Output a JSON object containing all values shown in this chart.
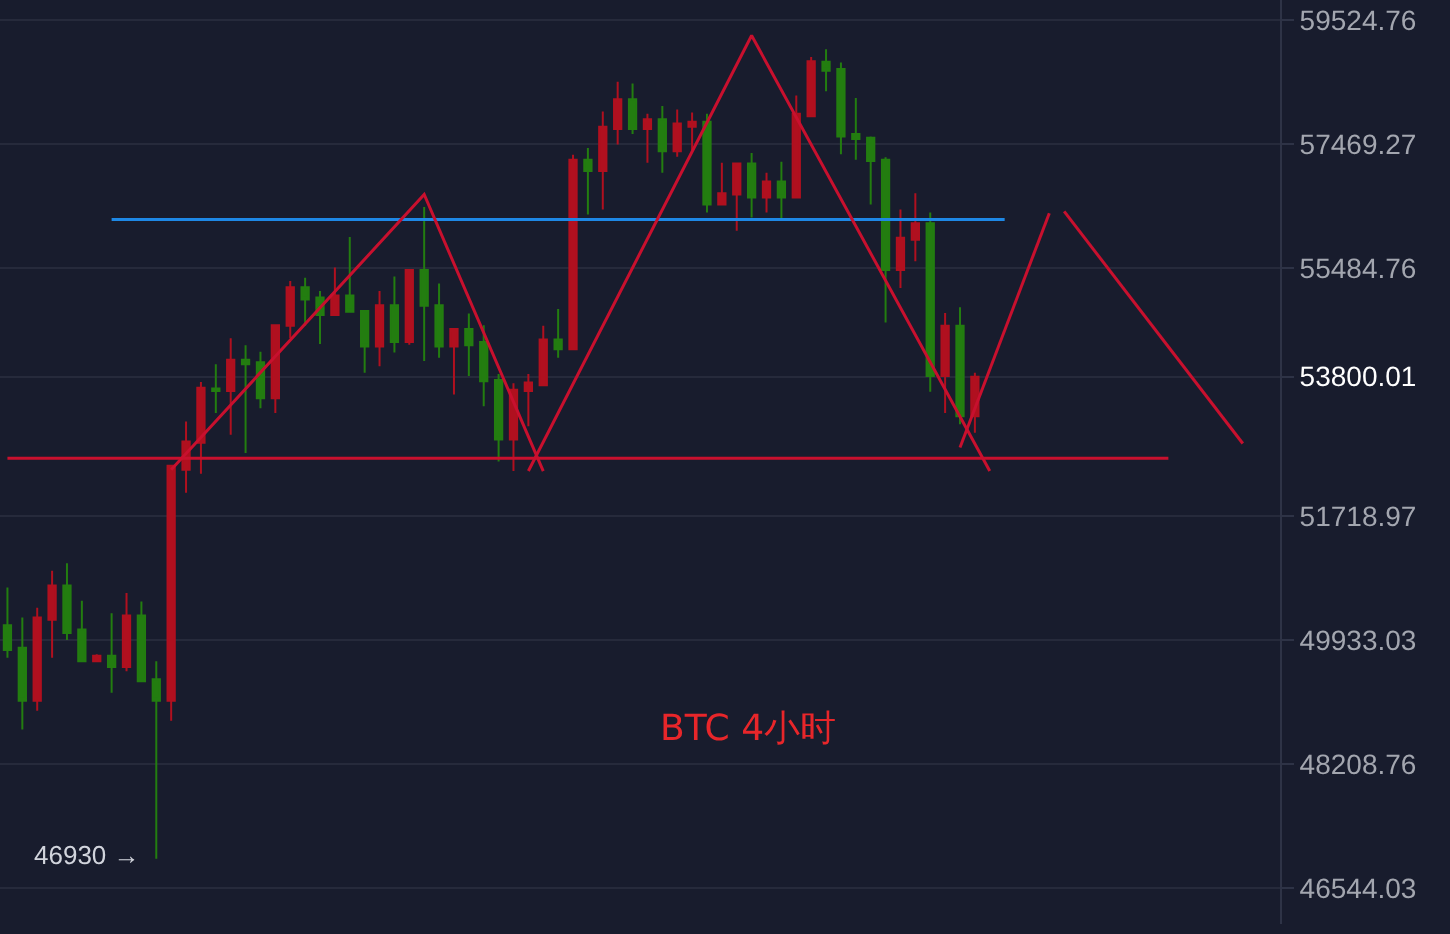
{
  "chart_data": {
    "type": "candlestick",
    "annotations": [
      "BTC 4小时",
      "46930 →"
    ],
    "categories": [
      null,
      null,
      null,
      null,
      null,
      null,
      null,
      null,
      null,
      null,
      null,
      null,
      null,
      null,
      null,
      null,
      null,
      null,
      null,
      null,
      null,
      null,
      null,
      null,
      null,
      null,
      null,
      null,
      null,
      null,
      null,
      null,
      null,
      null,
      null,
      null,
      null,
      null,
      null,
      null,
      null,
      null,
      null,
      null,
      null,
      null,
      null,
      null,
      null,
      null,
      null,
      null,
      null,
      null,
      null,
      null,
      null,
      null,
      null,
      null,
      null,
      null,
      null,
      null,
      null,
      null,
      null,
      null,
      null,
      null,
      null,
      null,
      null,
      null,
      null,
      null,
      null,
      null,
      null,
      null,
      null,
      null,
      null,
      null,
      null,
      null
    ],
    "ohlc": [
      [
        50140,
        50680,
        49680,
        49790
      ],
      [
        49820,
        50250,
        48680,
        49080
      ],
      [
        49080,
        50390,
        48940,
        50250
      ],
      [
        50220,
        50920,
        49680,
        50710
      ],
      [
        50710,
        51030,
        49930,
        50030
      ],
      [
        50080,
        50490,
        49630,
        49630
      ],
      [
        49630,
        49730,
        49630,
        49710
      ],
      [
        49710,
        50310,
        49190,
        49550
      ],
      [
        49550,
        50600,
        49490,
        50280
      ],
      [
        50280,
        50480,
        49350,
        49350
      ],
      [
        49380,
        49630,
        46930,
        49080
      ],
      [
        49080,
        52460,
        48800,
        52460
      ],
      [
        52400,
        53120,
        52060,
        52820
      ],
      [
        52800,
        53720,
        52340,
        53630
      ],
      [
        53620,
        53990,
        53250,
        53580
      ],
      [
        53580,
        54390,
        52920,
        54060
      ],
      [
        54060,
        54280,
        52650,
        53990
      ],
      [
        54020,
        54180,
        53320,
        53470
      ],
      [
        53470,
        54590,
        53250,
        54590
      ],
      [
        54580,
        55280,
        54390,
        55180
      ],
      [
        55180,
        55330,
        54580,
        54990
      ],
      [
        55020,
        55120,
        54300,
        54750
      ],
      [
        54750,
        55490,
        54750,
        55050
      ],
      [
        55050,
        55970,
        54800,
        54800
      ],
      [
        54810,
        54810,
        53860,
        54260
      ],
      [
        54260,
        55120,
        53960,
        54900
      ],
      [
        54900,
        55350,
        54170,
        54330
      ],
      [
        54330,
        55450,
        54290,
        55450
      ],
      [
        55450,
        56450,
        54040,
        54890
      ],
      [
        54900,
        55240,
        54090,
        54260
      ],
      [
        54260,
        54530,
        53530,
        54530
      ],
      [
        54530,
        54770,
        53810,
        54280
      ],
      [
        54330,
        54590,
        53350,
        53730
      ],
      [
        53750,
        53840,
        52520,
        52850
      ],
      [
        52850,
        53700,
        52380,
        53600
      ],
      [
        53580,
        53840,
        53050,
        53710
      ],
      [
        53670,
        54580,
        53670,
        54370
      ],
      [
        54370,
        54840,
        54090,
        54220
      ],
      [
        54220,
        57290,
        54220,
        57210
      ],
      [
        57210,
        57400,
        56330,
        57030
      ],
      [
        57030,
        58000,
        56410,
        57750
      ],
      [
        57710,
        58490,
        57460,
        58200
      ],
      [
        58200,
        58460,
        57630,
        57710
      ],
      [
        57710,
        57960,
        57160,
        57870
      ],
      [
        57870,
        58090,
        57000,
        57350
      ],
      [
        57350,
        58030,
        57260,
        57800
      ],
      [
        57750,
        57980,
        57370,
        57830
      ],
      [
        57830,
        57960,
        56360,
        56490
      ],
      [
        56490,
        57160,
        56490,
        56670
      ],
      [
        56650,
        57150,
        56070,
        57150
      ],
      [
        57150,
        57320,
        56280,
        56600
      ],
      [
        56600,
        57000,
        56360,
        56860
      ],
      [
        56860,
        57180,
        56250,
        56600
      ],
      [
        56600,
        58260,
        56600,
        57960
      ],
      [
        57920,
        58900,
        57920,
        58830
      ],
      [
        58820,
        59030,
        58330,
        58670
      ],
      [
        58700,
        58810,
        57300,
        57590
      ],
      [
        57630,
        58220,
        57210,
        57550
      ],
      [
        57570,
        57590,
        56490,
        57190
      ],
      [
        57210,
        57250,
        54630,
        55450
      ],
      [
        55450,
        56410,
        55170,
        55960
      ],
      [
        55930,
        56670,
        55590,
        56190
      ],
      [
        56190,
        56360,
        53570,
        53810
      ],
      [
        53810,
        54780,
        53250,
        54580
      ],
      [
        54580,
        54870,
        53080,
        53200
      ],
      [
        53200,
        53860,
        52950,
        53800.01
      ],
      null,
      null,
      null,
      null,
      null,
      null,
      null,
      null,
      null,
      null,
      null,
      null,
      null,
      null,
      null,
      null,
      null,
      null,
      null,
      null
    ],
    "colors": [
      "#237d10",
      "#237d10",
      "#b0101f",
      "#b0101f",
      "#237d10",
      "#237d10",
      "#b0101f",
      "#237d10",
      "#b0101f",
      "#237d10",
      "#237d10",
      "#b0101f",
      "#b0101f",
      "#b0101f",
      "#237d10",
      "#b0101f",
      "#237d10",
      "#237d10",
      "#b0101f",
      "#b0101f",
      "#237d10",
      "#237d10",
      "#b0101f",
      "#237d10",
      "#237d10",
      "#b0101f",
      "#237d10",
      "#b0101f",
      "#237d10",
      "#237d10",
      "#b0101f",
      "#237d10",
      "#237d10",
      "#237d10",
      "#b0101f",
      "#b0101f",
      "#b0101f",
      "#237d10",
      "#b0101f",
      "#237d10",
      "#b0101f",
      "#b0101f",
      "#237d10",
      "#b0101f",
      "#237d10",
      "#b0101f",
      "#b0101f",
      "#237d10",
      "#b0101f",
      "#b0101f",
      "#237d10",
      "#b0101f",
      "#237d10",
      "#b0101f",
      "#b0101f",
      "#237d10",
      "#237d10",
      "#237d10",
      "#237d10",
      "#237d10",
      "#b0101f",
      "#b0101f",
      "#237d10",
      "#b0101f",
      "#237d10",
      "#b0101f",
      null,
      null,
      null,
      null,
      null,
      null,
      null,
      null,
      null,
      null,
      null,
      null,
      null,
      null,
      null,
      null,
      null,
      null,
      null,
      null
    ],
    "series": [
      {
        "type": "line",
        "color": "#1e88e5",
        "values": [
          null,
          null,
          null,
          null,
          null,
          null,
          null,
          56250,
          null,
          null,
          null,
          null,
          null,
          null,
          null,
          null,
          null,
          null,
          null,
          null,
          null,
          null,
          null,
          null,
          null,
          null,
          null,
          null,
          null,
          null,
          null,
          null,
          null,
          null,
          null,
          null,
          null,
          null,
          null,
          null,
          null,
          null,
          null,
          null,
          null,
          null,
          null,
          null,
          null,
          null,
          null,
          null,
          null,
          null,
          null,
          null,
          null,
          null,
          null,
          null,
          null,
          null,
          null,
          null,
          null,
          null,
          null,
          56250,
          null,
          null,
          null,
          null,
          null,
          null,
          null,
          null,
          null,
          null,
          null,
          null,
          null,
          null,
          null,
          null,
          null,
          null
        ]
      },
      {
        "type": "line",
        "color": "#c8102e",
        "values": [
          52570,
          null,
          null,
          null,
          null,
          null,
          null,
          null,
          null,
          null,
          null,
          null,
          null,
          null,
          null,
          null,
          null,
          null,
          null,
          null,
          null,
          null,
          null,
          null,
          null,
          null,
          null,
          null,
          null,
          null,
          null,
          null,
          null,
          null,
          null,
          null,
          null,
          null,
          null,
          null,
          null,
          null,
          null,
          null,
          null,
          null,
          null,
          null,
          null,
          null,
          null,
          null,
          null,
          null,
          null,
          null,
          null,
          null,
          null,
          null,
          null,
          null,
          null,
          null,
          null,
          null,
          null,
          null,
          null,
          null,
          null,
          null,
          null,
          null,
          null,
          null,
          null,
          null,
          52570,
          null,
          null,
          null,
          null,
          null,
          null,
          null
        ]
      },
      {
        "type": "line",
        "color": "#c8102e",
        "values": [
          null,
          null,
          null,
          null,
          null,
          null,
          null,
          null,
          null,
          null,
          null,
          52400,
          null,
          null,
          null,
          null,
          null,
          null,
          null,
          null,
          null,
          null,
          null,
          null,
          null,
          null,
          null,
          null,
          56650,
          null,
          null,
          null,
          null,
          null,
          null,
          null,
          52380,
          null,
          null,
          null,
          null,
          null,
          null,
          null,
          null,
          null,
          null,
          null,
          null,
          null,
          null,
          null,
          null,
          null,
          null,
          null,
          null,
          null,
          null,
          null,
          null,
          null,
          null,
          null,
          null,
          null,
          null,
          null,
          null,
          null,
          null,
          null,
          null,
          null,
          null,
          null,
          null,
          null,
          null,
          null,
          null,
          null,
          null,
          null,
          null,
          null
        ]
      },
      {
        "type": "line",
        "color": "#c8102e",
        "values": [
          null,
          null,
          null,
          null,
          null,
          null,
          null,
          null,
          null,
          null,
          null,
          null,
          null,
          null,
          null,
          null,
          null,
          null,
          null,
          null,
          null,
          null,
          null,
          null,
          null,
          null,
          null,
          null,
          null,
          null,
          null,
          null,
          null,
          null,
          null,
          52380,
          null,
          null,
          null,
          null,
          null,
          null,
          null,
          null,
          null,
          null,
          null,
          null,
          null,
          null,
          59260,
          null,
          null,
          null,
          null,
          null,
          null,
          null,
          null,
          null,
          null,
          null,
          null,
          null,
          null,
          null,
          52380,
          null,
          null,
          null,
          null,
          null,
          null,
          null,
          null,
          null,
          null,
          null,
          null,
          null,
          null,
          null,
          null,
          null,
          null,
          null
        ]
      },
      {
        "type": "line",
        "color": "#c8102e",
        "values": [
          null,
          null,
          null,
          null,
          null,
          null,
          null,
          null,
          null,
          null,
          null,
          null,
          null,
          null,
          null,
          null,
          null,
          null,
          null,
          null,
          null,
          null,
          null,
          null,
          null,
          null,
          null,
          null,
          null,
          null,
          null,
          null,
          null,
          null,
          null,
          null,
          null,
          null,
          null,
          null,
          null,
          null,
          null,
          null,
          null,
          null,
          null,
          null,
          null,
          null,
          null,
          null,
          null,
          null,
          null,
          null,
          null,
          null,
          null,
          null,
          null,
          null,
          null,
          null,
          52730,
          null,
          null,
          null,
          null,
          null,
          56350,
          null,
          null,
          null,
          null,
          null,
          null,
          null,
          null,
          null,
          null,
          null,
          null,
          null,
          null,
          null
        ]
      },
      {
        "type": "line",
        "color": "#c8102e",
        "values": [
          null,
          null,
          null,
          null,
          null,
          null,
          null,
          null,
          null,
          null,
          null,
          null,
          null,
          null,
          null,
          null,
          null,
          null,
          null,
          null,
          null,
          null,
          null,
          null,
          null,
          null,
          null,
          null,
          null,
          null,
          null,
          null,
          null,
          null,
          null,
          null,
          null,
          null,
          null,
          null,
          null,
          null,
          null,
          null,
          null,
          null,
          null,
          null,
          null,
          null,
          null,
          null,
          null,
          null,
          null,
          null,
          null,
          null,
          null,
          null,
          null,
          null,
          null,
          null,
          null,
          null,
          null,
          null,
          null,
          null,
          null,
          56380,
          null,
          null,
          null,
          null,
          null,
          null,
          null,
          null,
          null,
          null,
          null,
          52790,
          null,
          null
        ]
      }
    ],
    "log": true,
    "ylim": [
      46070,
      59860
    ],
    "yticks": [
      46544.03,
      48208.76,
      49933.03,
      51718.97,
      53800.01,
      55484.76,
      57469.27,
      59524.76
    ],
    "tick_labels": "y",
    "grid": "y"
  }
}
